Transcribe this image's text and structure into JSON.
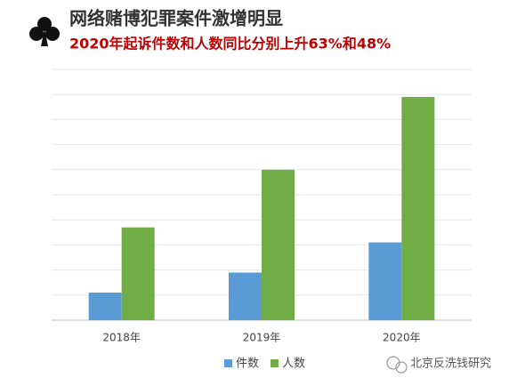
{
  "chart_data": {
    "type": "bar",
    "title": "网络赌博犯罪案件激增明显",
    "subtitle": "2020年起诉件数和人数同比分别上升63%和48%",
    "categories": [
      "2018年",
      "2019年",
      "2020年"
    ],
    "series": [
      {
        "name": "件数",
        "color": "#5b9bd5",
        "values": [
          1.1,
          1.9,
          3.1
        ]
      },
      {
        "name": "人数",
        "color": "#70ad47",
        "values": [
          3.7,
          6.0,
          8.9
        ]
      }
    ],
    "ylim": [
      0,
      10
    ],
    "yticks": [
      0,
      1,
      2,
      3,
      4,
      5,
      6,
      7,
      8,
      9,
      10
    ],
    "grid": true,
    "legend": "bottom",
    "watermark": "北京反洗钱研究"
  }
}
